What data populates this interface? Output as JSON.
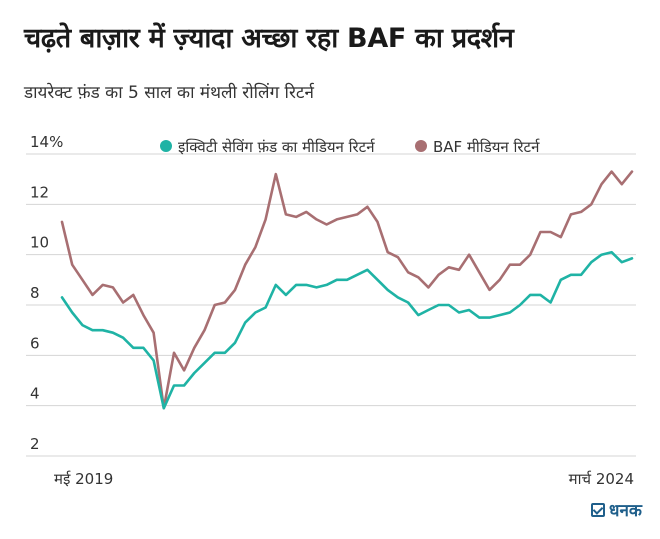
{
  "header": {
    "title": "चढ़ते बाज़ार में ज़्यादा अच्छा रहा BAF का प्रदर्शन",
    "subtitle": "डायरेक्ट फ़ंड का 5 साल का मंथली रोलिंग रिटर्न"
  },
  "brand": {
    "name": "धनक"
  },
  "chart_data": {
    "type": "line",
    "title": "चढ़ते बाज़ार में ज़्यादा अच्छा रहा BAF का प्रदर्शन",
    "subtitle": "डायरेक्ट फ़ंड का 5 साल का मंथली रोलिंग रिटर्न",
    "xlabel": "",
    "ylabel": "",
    "x_start_label": "मई 2019",
    "x_end_label": "मार्च 2024",
    "ylim": [
      2,
      14
    ],
    "y_ticks": [
      "2",
      "4",
      "6",
      "8",
      "10",
      "12",
      "14%"
    ],
    "y_tick_values": [
      2,
      4,
      6,
      8,
      10,
      12,
      14
    ],
    "grid": true,
    "legend": "top",
    "series": [
      {
        "name": "इक्विटी सेविंग फ़ंड का मीडियन रिटर्न",
        "color": "#1fb3a5",
        "values": [
          8.3,
          7.7,
          7.2,
          7.0,
          7.0,
          6.9,
          6.7,
          6.3,
          6.3,
          5.8,
          3.9,
          4.8,
          4.8,
          5.3,
          5.7,
          6.1,
          6.1,
          6.5,
          7.3,
          7.7,
          7.9,
          8.8,
          8.4,
          8.8,
          8.8,
          8.7,
          8.8,
          9.0,
          9.0,
          9.2,
          9.4,
          9.0,
          8.6,
          8.3,
          8.1,
          7.6,
          7.8,
          8.0,
          8.0,
          7.7,
          7.8,
          7.5,
          7.5,
          7.6,
          7.7,
          8.0,
          8.4,
          8.4,
          8.1,
          9.0,
          9.2,
          9.2,
          9.7,
          10.0,
          10.1,
          9.7,
          9.85
        ]
      },
      {
        "name": "BAF मीडियन रिटर्न",
        "color": "#a86f72",
        "values": [
          11.3,
          9.6,
          9.0,
          8.4,
          8.8,
          8.7,
          8.1,
          8.4,
          7.6,
          6.9,
          3.9,
          6.1,
          5.4,
          6.3,
          7.0,
          8.0,
          8.1,
          8.6,
          9.6,
          10.3,
          11.4,
          13.2,
          11.6,
          11.5,
          11.7,
          11.4,
          11.2,
          11.4,
          11.5,
          11.6,
          11.9,
          11.3,
          10.1,
          9.9,
          9.3,
          9.1,
          8.7,
          9.2,
          9.5,
          9.4,
          10.0,
          9.3,
          8.6,
          9.0,
          9.6,
          9.6,
          10.0,
          10.9,
          10.9,
          10.7,
          11.6,
          11.7,
          12.0,
          12.8,
          13.3,
          12.8,
          13.3
        ]
      }
    ]
  }
}
